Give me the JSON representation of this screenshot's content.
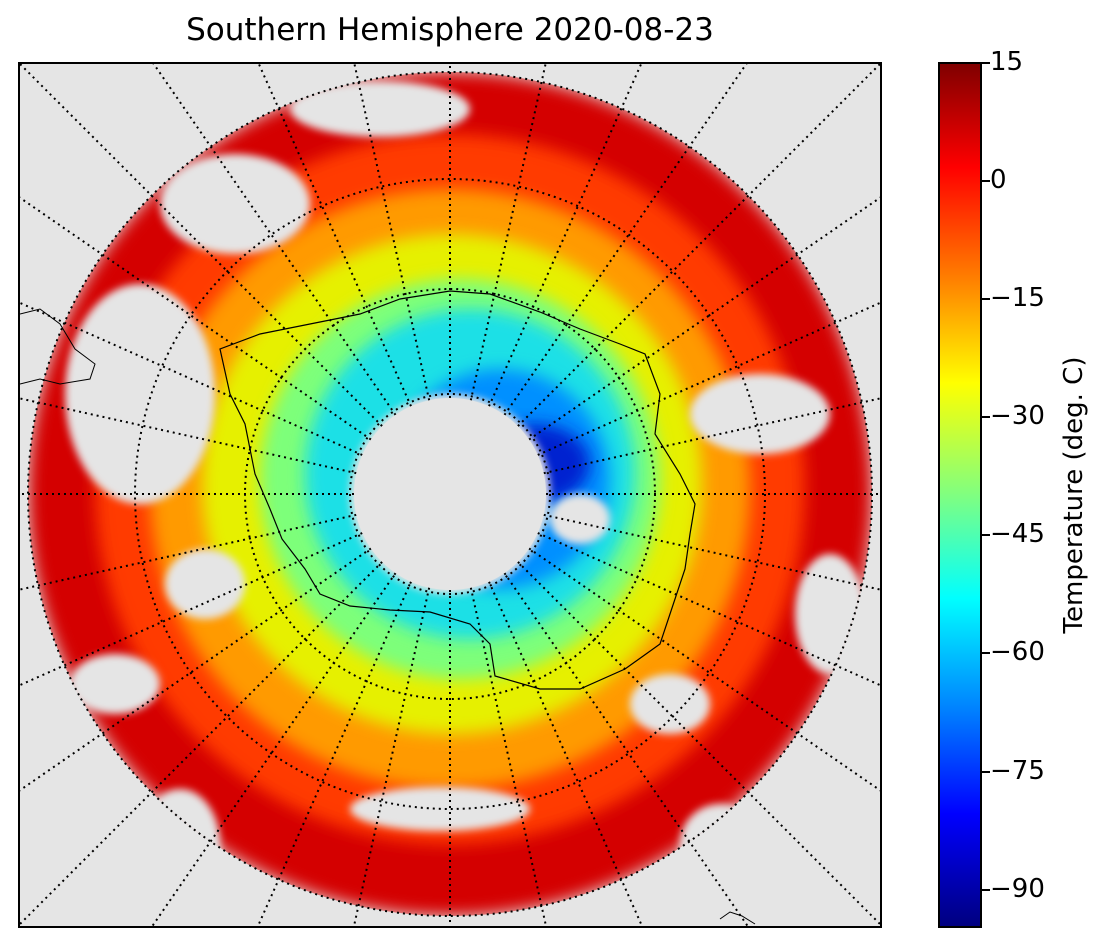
{
  "title": "Southern Hemisphere 2020-08-23",
  "colorbar": {
    "label": "Temperature (deg. C)",
    "min": -95,
    "max": 15,
    "ticks": [
      "15",
      "0",
      "−15",
      "−30",
      "−45",
      "−60",
      "−75",
      "−90"
    ],
    "tick_values": [
      15,
      0,
      -15,
      -30,
      -45,
      -60,
      -75,
      -90
    ],
    "colormap": "jet"
  },
  "map": {
    "projection": "south-polar-stereographic",
    "background_color": "#e5e5e5",
    "graticule_style": "dotted"
  }
}
